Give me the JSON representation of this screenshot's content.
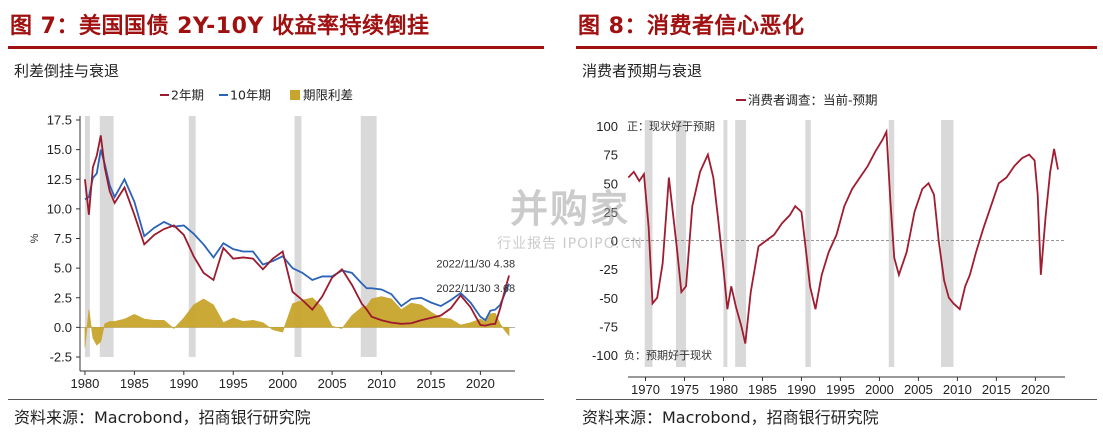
{
  "left": {
    "figure_title": "图 7：美国国债 2Y-10Y 收益率持续倒挂",
    "subtitle": "利差倒挂与衰退",
    "source": "资料来源：Macrobond，招商银行研究院",
    "chart_data": {
      "type": "line",
      "title": "",
      "ylabel": "%",
      "xlabel": "",
      "xlim": [
        1979.5,
        2023.5
      ],
      "ylim": [
        -2.5,
        17.5
      ],
      "x_ticks": [
        1980,
        1985,
        1990,
        1995,
        2000,
        2005,
        2010,
        2015,
        2020
      ],
      "y_ticks": [
        -2.5,
        0.0,
        2.5,
        5.0,
        7.5,
        10.0,
        12.5,
        15.0,
        17.5
      ],
      "y_tick_labels": [
        "-2.5",
        "0.0",
        "2.5",
        "5.0",
        "7.5",
        "10.0",
        "12.5",
        "15.0",
        "17.5"
      ],
      "legend": [
        "2年期",
        "10年期",
        "期限利差"
      ],
      "legend_placement": "top-center",
      "recession_bands": [
        [
          1980.0,
          1980.5
        ],
        [
          1981.5,
          1982.9
        ],
        [
          1990.5,
          1991.2
        ],
        [
          2001.2,
          2001.9
        ],
        [
          2007.9,
          2009.5
        ]
      ],
      "annotations": [
        {
          "text": "2022/11/30 4.38",
          "x": 2022.9,
          "y": 4.38
        },
        {
          "text": "2022/11/30 3.68",
          "x": 2022.9,
          "y": 3.68
        }
      ],
      "series": [
        {
          "name": "2年期",
          "color": "#9c1a2e",
          "x": [
            1980,
            1980.4,
            1980.8,
            1981.2,
            1981.6,
            1982.0,
            1982.5,
            1983,
            1984,
            1985,
            1986,
            1987,
            1988,
            1989,
            1990,
            1991,
            1992,
            1993,
            1994,
            1995,
            1996,
            1997,
            1998,
            1999,
            2000,
            2001,
            2002,
            2003,
            2004,
            2005,
            2006,
            2007,
            2008,
            2008.5,
            2009,
            2010,
            2011,
            2012,
            2013,
            2014,
            2015,
            2016,
            2017,
            2018,
            2019,
            2020,
            2020.5,
            2021,
            2021.5,
            2022,
            2022.5,
            2022.9
          ],
          "values": [
            12.5,
            9.5,
            13.5,
            14.5,
            16.2,
            13.5,
            11.5,
            10.5,
            11.8,
            9.5,
            7.0,
            7.8,
            8.3,
            8.6,
            7.8,
            6.0,
            4.6,
            4.0,
            6.7,
            5.8,
            5.9,
            5.8,
            4.9,
            5.8,
            6.4,
            3.0,
            2.3,
            1.5,
            2.6,
            4.2,
            4.9,
            3.6,
            2.0,
            1.5,
            0.9,
            0.6,
            0.4,
            0.3,
            0.35,
            0.6,
            0.8,
            1.0,
            1.6,
            2.7,
            1.7,
            0.2,
            0.15,
            0.25,
            0.3,
            1.6,
            3.2,
            4.38
          ]
        },
        {
          "name": "10年期",
          "color": "#2a63b7",
          "x": [
            1980,
            1980.4,
            1980.8,
            1981.2,
            1981.6,
            1982.0,
            1982.5,
            1983,
            1984,
            1985,
            1986,
            1987,
            1988,
            1989,
            1990,
            1991,
            1992,
            1993,
            1994,
            1995,
            1996,
            1997,
            1998,
            1999,
            2000,
            2001,
            2002,
            2003,
            2004,
            2005,
            2006,
            2007,
            2008,
            2008.5,
            2009,
            2010,
            2011,
            2012,
            2013,
            2014,
            2015,
            2016,
            2017,
            2018,
            2019,
            2020,
            2020.5,
            2021,
            2021.5,
            2022,
            2022.5,
            2022.9
          ],
          "values": [
            10.8,
            11.0,
            12.6,
            13.0,
            15.0,
            13.8,
            12.0,
            11.0,
            12.5,
            10.6,
            7.7,
            8.4,
            8.9,
            8.5,
            8.6,
            7.9,
            7.0,
            5.9,
            7.1,
            6.6,
            6.4,
            6.4,
            5.3,
            5.6,
            6.0,
            5.0,
            4.6,
            4.0,
            4.3,
            4.3,
            4.8,
            4.6,
            3.7,
            3.3,
            3.3,
            3.2,
            2.8,
            1.8,
            2.4,
            2.5,
            2.1,
            1.8,
            2.3,
            2.9,
            2.1,
            0.9,
            0.6,
            1.4,
            1.5,
            1.9,
            2.9,
            3.68
          ]
        },
        {
          "name": "期限利差",
          "color": "#c8a52c",
          "x": [
            1980,
            1980.4,
            1980.8,
            1981.2,
            1981.6,
            1982.0,
            1982.5,
            1983,
            1984,
            1985,
            1986,
            1987,
            1988,
            1989,
            1990,
            1991,
            1992,
            1993,
            1994,
            1995,
            1996,
            1997,
            1998,
            1999,
            2000,
            2001,
            2002,
            2003,
            2004,
            2005,
            2006,
            2007,
            2008,
            2008.5,
            2009,
            2010,
            2011,
            2012,
            2013,
            2014,
            2015,
            2016,
            2017,
            2018,
            2019,
            2020,
            2020.5,
            2021,
            2021.5,
            2022,
            2022.5,
            2022.9
          ],
          "values": [
            -1.7,
            1.5,
            -0.9,
            -1.5,
            -1.2,
            0.3,
            0.5,
            0.5,
            0.7,
            1.1,
            0.7,
            0.6,
            0.6,
            -0.1,
            0.8,
            1.9,
            2.4,
            1.9,
            0.4,
            0.8,
            0.5,
            0.6,
            0.4,
            -0.2,
            -0.4,
            2.0,
            2.3,
            2.5,
            1.7,
            0.1,
            -0.1,
            1.0,
            1.7,
            1.8,
            2.4,
            2.6,
            2.4,
            1.5,
            2.05,
            1.9,
            1.3,
            0.8,
            0.7,
            0.2,
            0.4,
            0.7,
            0.45,
            1.15,
            1.2,
            0.3,
            -0.3,
            -0.7
          ]
        }
      ]
    }
  },
  "right": {
    "figure_title": "图 8：消费者信心恶化",
    "subtitle": "消费者预期与衰退",
    "source": "资料来源：Macrobond，招商银行研究院",
    "chart_data": {
      "type": "line",
      "title": "",
      "xlabel": "",
      "ylabel": "",
      "xlim": [
        1967.5,
        2023.8
      ],
      "ylim": [
        -100,
        100
      ],
      "x_ticks": [
        1970,
        1975,
        1980,
        1985,
        1990,
        1995,
        2000,
        2005,
        2010,
        2015,
        2020
      ],
      "y_ticks": [
        -100,
        -75,
        -50,
        -25,
        0,
        25,
        50,
        75,
        100
      ],
      "legend": [
        "消费者调查：当前-预期"
      ],
      "legend_placement": "top-center",
      "zero_line": "dashed",
      "annotations_text": [
        {
          "text": "正：现状好于预期",
          "placement": "top-left"
        },
        {
          "text": "负：预期好于现状",
          "placement": "bottom-left"
        }
      ],
      "recession_bands": [
        [
          1969.9,
          1970.9
        ],
        [
          1973.9,
          1975.2
        ],
        [
          1980.0,
          1980.5
        ],
        [
          1981.5,
          1982.9
        ],
        [
          1990.5,
          1991.2
        ],
        [
          2001.2,
          2001.9
        ],
        [
          2007.9,
          2009.5
        ]
      ],
      "series": [
        {
          "name": "消费者调查：当前-预期",
          "color": "#a01c30",
          "x": [
            1967.8,
            1968.5,
            1969.2,
            1969.8,
            1970.4,
            1970.9,
            1971.5,
            1972.2,
            1973.0,
            1973.5,
            1974.0,
            1974.6,
            1975.2,
            1976.0,
            1977.0,
            1978.0,
            1978.7,
            1979.3,
            1980.0,
            1980.5,
            1981.0,
            1981.6,
            1982.3,
            1982.8,
            1983.5,
            1984.5,
            1985.5,
            1986.5,
            1987.5,
            1988.5,
            1989.2,
            1990.0,
            1990.6,
            1991.1,
            1991.8,
            1992.6,
            1993.5,
            1994.5,
            1995.5,
            1996.5,
            1997.5,
            1998.5,
            1999.5,
            2000.4,
            2000.9,
            2001.4,
            2001.9,
            2002.5,
            2003.5,
            2004.5,
            2005.5,
            2006.3,
            2007.0,
            2007.6,
            2008.3,
            2008.9,
            2009.5,
            2010.3,
            2011.0,
            2011.6,
            2012.4,
            2013.3,
            2014.3,
            2015.3,
            2016.3,
            2017.3,
            2018.3,
            2019.2,
            2019.9,
            2020.3,
            2020.7,
            2021.3,
            2021.9,
            2022.4,
            2022.9
          ],
          "values": [
            55,
            60,
            52,
            58,
            12,
            -55,
            -50,
            -20,
            55,
            25,
            -5,
            -45,
            -40,
            30,
            60,
            75,
            55,
            20,
            -25,
            -60,
            -40,
            -58,
            -75,
            -90,
            -45,
            -5,
            0,
            5,
            15,
            22,
            30,
            25,
            -10,
            -40,
            -60,
            -30,
            -10,
            5,
            30,
            45,
            55,
            65,
            78,
            88,
            95,
            35,
            -15,
            -30,
            -10,
            25,
            45,
            50,
            40,
            0,
            -35,
            -50,
            -55,
            -60,
            -40,
            -30,
            -10,
            10,
            30,
            50,
            55,
            65,
            72,
            75,
            70,
            40,
            -30,
            20,
            60,
            80,
            62
          ]
        }
      ]
    }
  },
  "watermark": {
    "main": "并购家",
    "sub": "行业报告 IPOIPO.CN"
  }
}
